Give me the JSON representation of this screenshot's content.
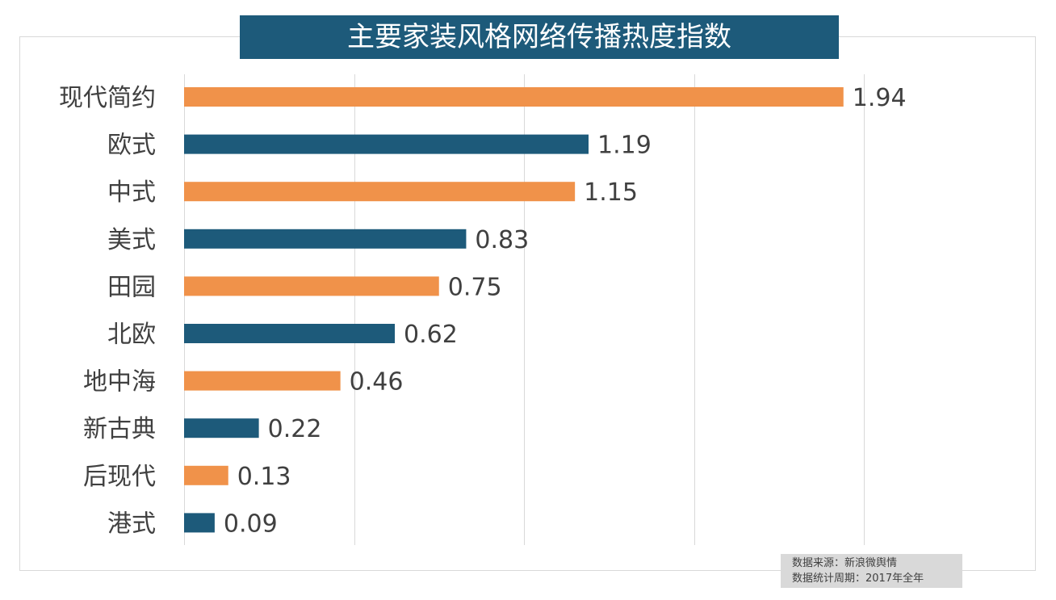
{
  "chart_data": {
    "type": "bar",
    "orientation": "horizontal",
    "title": "主要家装风格网络传播热度指数",
    "categories": [
      "现代简约",
      "欧式",
      "中式",
      "美式",
      "田园",
      "北欧",
      "地中海",
      "新古典",
      "后现代",
      "港式"
    ],
    "values": [
      1.94,
      1.19,
      1.15,
      0.83,
      0.75,
      0.62,
      0.46,
      0.22,
      0.13,
      0.09
    ],
    "data_labels": [
      "1.94",
      "1.19",
      "1.15",
      "0.83",
      "0.75",
      "0.62",
      "0.46",
      "0.22",
      "0.13",
      "0.09"
    ],
    "xlim": [
      0,
      2.0
    ],
    "grid_step": 0.5,
    "grid": true,
    "xlabel": "",
    "ylabel": "",
    "colors": {
      "orange": "#f0924a",
      "blue": "#1d5a7a"
    },
    "bar_color_pattern": "alternating orange / blue"
  },
  "source": {
    "line1": "数据来源：新浪微舆情",
    "line2": "数据统计周期：2017年全年"
  }
}
